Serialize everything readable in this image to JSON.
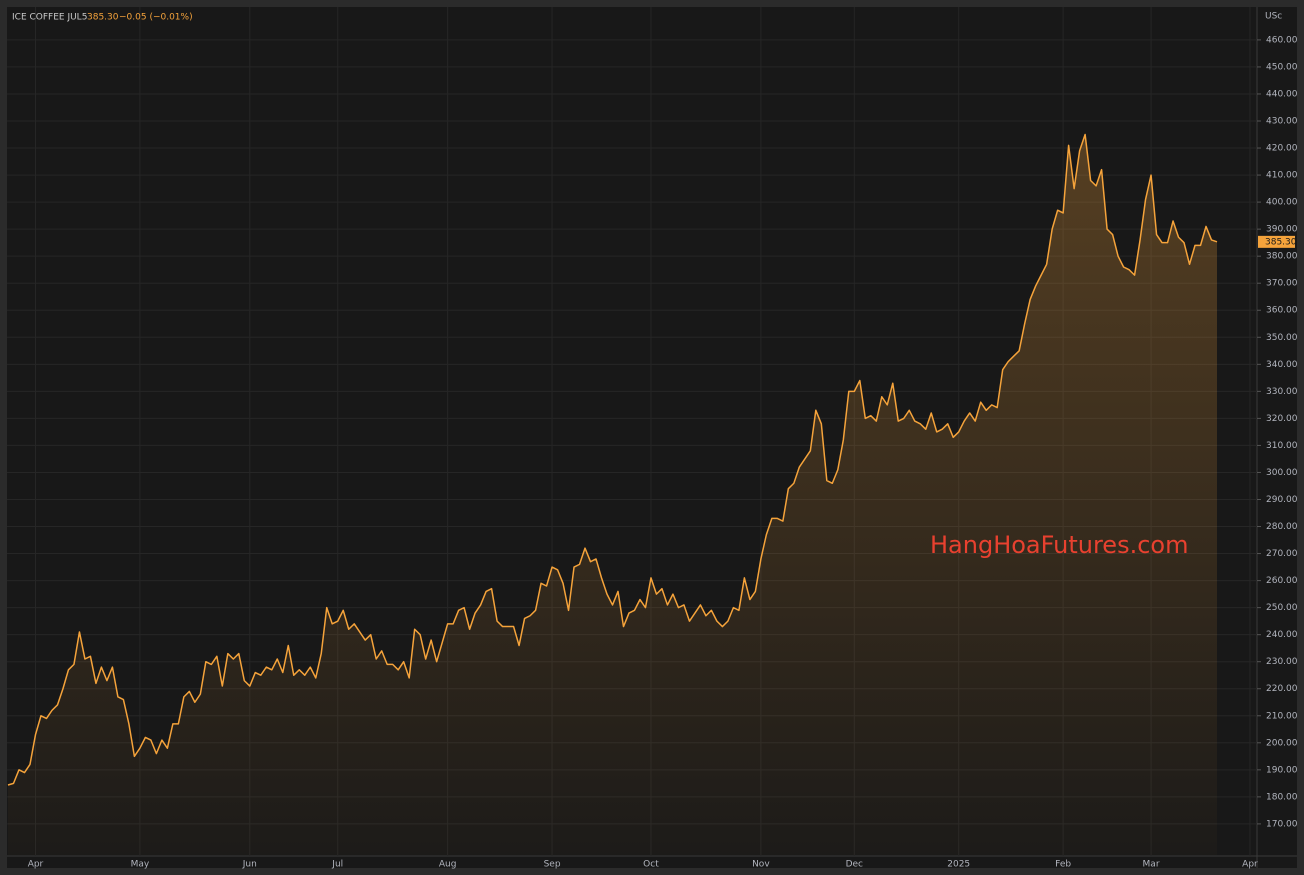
{
  "header": {
    "symbol": "ICE COFFEE JUL5",
    "price": "385.30",
    "change": "−0.05 (−0.01%)"
  },
  "chart_data": {
    "type": "line",
    "y_axis_label": "USc",
    "watermark": "HangHoaFutures.com",
    "last_value_label": "385.30",
    "grid": true,
    "categories": [
      null,
      null,
      null,
      null,
      null,
      "Apr",
      null,
      null,
      null,
      null,
      null,
      null,
      null,
      null,
      null,
      null,
      null,
      null,
      null,
      null,
      null,
      null,
      null,
      null,
      "May",
      null,
      null,
      null,
      null,
      null,
      null,
      null,
      null,
      null,
      null,
      null,
      null,
      null,
      null,
      null,
      null,
      null,
      null,
      null,
      "Jun",
      null,
      null,
      null,
      null,
      null,
      null,
      null,
      null,
      null,
      null,
      null,
      null,
      null,
      null,
      null,
      "Jul",
      null,
      null,
      null,
      null,
      null,
      null,
      null,
      null,
      null,
      null,
      null,
      null,
      null,
      null,
      null,
      null,
      null,
      null,
      null,
      "Aug",
      null,
      null,
      null,
      null,
      null,
      null,
      null,
      null,
      null,
      null,
      null,
      null,
      null,
      null,
      null,
      null,
      null,
      null,
      "Sep",
      null,
      null,
      null,
      null,
      null,
      null,
      null,
      null,
      null,
      null,
      null,
      null,
      null,
      null,
      null,
      null,
      null,
      "Oct",
      null,
      null,
      null,
      null,
      null,
      null,
      null,
      null,
      null,
      null,
      null,
      null,
      null,
      null,
      null,
      null,
      null,
      null,
      null,
      "Nov",
      null,
      null,
      null,
      null,
      null,
      null,
      null,
      null,
      null,
      null,
      null,
      null,
      null,
      null,
      null,
      null,
      "Dec",
      null,
      null,
      null,
      null,
      null,
      null,
      null,
      null,
      null,
      null,
      null,
      null,
      null,
      null,
      null,
      null,
      null,
      null,
      "2025",
      null,
      null,
      null,
      null,
      null,
      null,
      null,
      null,
      null,
      null,
      null,
      null,
      null,
      null,
      null,
      null,
      null,
      null,
      "Feb",
      null,
      null,
      null,
      null,
      null,
      null,
      null,
      null,
      null,
      null,
      null,
      null,
      null,
      null,
      null,
      "Mar",
      null,
      null,
      null,
      null,
      null,
      null,
      null,
      null,
      null,
      null,
      null,
      null,
      null,
      null,
      null,
      null,
      null,
      "Apr"
    ],
    "series": [
      {
        "color": "#f5a33b",
        "values": [
          184.4,
          185,
          190,
          189,
          192,
          203,
          210,
          209,
          212,
          214,
          220,
          227,
          229,
          241,
          231,
          232,
          222,
          228,
          223,
          228,
          217,
          216,
          207,
          195,
          198,
          202,
          201,
          196,
          201,
          198,
          207,
          207,
          217,
          219,
          215,
          218,
          230,
          229,
          232,
          221,
          233,
          231,
          233,
          223,
          221,
          226,
          225,
          228,
          227,
          231,
          226,
          236,
          225,
          227,
          225,
          228,
          224,
          233,
          250,
          244,
          245,
          249,
          242,
          244,
          241,
          238,
          240,
          231,
          234,
          229,
          229,
          227,
          230,
          224,
          242,
          240,
          231,
          238,
          230,
          237,
          244,
          244,
          249,
          250,
          242,
          248,
          251,
          256,
          257,
          245,
          243,
          243,
          243,
          236,
          246,
          247,
          249,
          259,
          258,
          265,
          264,
          259,
          249,
          265,
          266,
          272,
          267,
          268,
          261,
          255,
          251,
          256,
          243,
          248,
          249,
          253,
          250,
          261,
          255,
          257,
          251,
          255,
          250,
          251,
          245,
          248,
          251,
          247,
          249,
          245,
          243,
          245,
          250,
          249,
          261,
          253,
          256,
          268,
          277,
          283,
          283,
          282,
          294,
          296,
          302,
          305,
          308,
          323,
          318,
          297,
          296,
          301,
          312,
          330,
          330,
          334,
          320,
          321,
          319,
          328,
          325,
          333,
          319,
          320,
          323,
          319,
          318,
          316,
          322,
          315,
          316,
          318,
          313,
          315,
          319,
          322,
          319,
          326,
          323,
          325,
          324,
          338,
          341,
          343,
          345,
          355,
          364,
          369,
          373,
          377,
          390,
          397,
          396,
          421,
          405,
          419,
          425,
          408,
          406,
          412,
          390,
          388,
          380,
          376,
          375,
          373,
          386,
          401,
          410,
          388,
          385,
          385,
          393,
          387,
          385,
          377,
          384,
          384,
          391,
          386,
          385.3,
          null,
          null,
          null,
          null,
          null,
          null
        ]
      }
    ],
    "ylim": [
      158.5,
      471.8
    ],
    "yticks": [
      {
        "value": 170,
        "label": "170.00"
      },
      {
        "value": 180,
        "label": "180.00"
      },
      {
        "value": 190,
        "label": "190.00"
      },
      {
        "value": 200,
        "label": "200.00"
      },
      {
        "value": 210,
        "label": "210.00"
      },
      {
        "value": 220,
        "label": "220.00"
      },
      {
        "value": 230,
        "label": "230.00"
      },
      {
        "value": 240,
        "label": "240.00"
      },
      {
        "value": 250,
        "label": "250.00"
      },
      {
        "value": 260,
        "label": "260.00"
      },
      {
        "value": 270,
        "label": "270.00"
      },
      {
        "value": 280,
        "label": "280.00"
      },
      {
        "value": 290,
        "label": "290.00"
      },
      {
        "value": 300,
        "label": "300.00"
      },
      {
        "value": 310,
        "label": "310.00"
      },
      {
        "value": 320,
        "label": "320.00"
      },
      {
        "value": 330,
        "label": "330.00"
      },
      {
        "value": 340,
        "label": "340.00"
      },
      {
        "value": 350,
        "label": "350.00"
      },
      {
        "value": 360,
        "label": "360.00"
      },
      {
        "value": 370,
        "label": "370.00"
      },
      {
        "value": 380,
        "label": "380.00"
      },
      {
        "value": 390,
        "label": "390.00"
      },
      {
        "value": 400,
        "label": "400.00"
      },
      {
        "value": 410,
        "label": "410.00"
      },
      {
        "value": 420,
        "label": "420.00"
      },
      {
        "value": 430,
        "label": "430.00"
      },
      {
        "value": 440,
        "label": "440.00"
      },
      {
        "value": 450,
        "label": "450.00"
      },
      {
        "value": 460,
        "label": "460.00"
      }
    ]
  }
}
